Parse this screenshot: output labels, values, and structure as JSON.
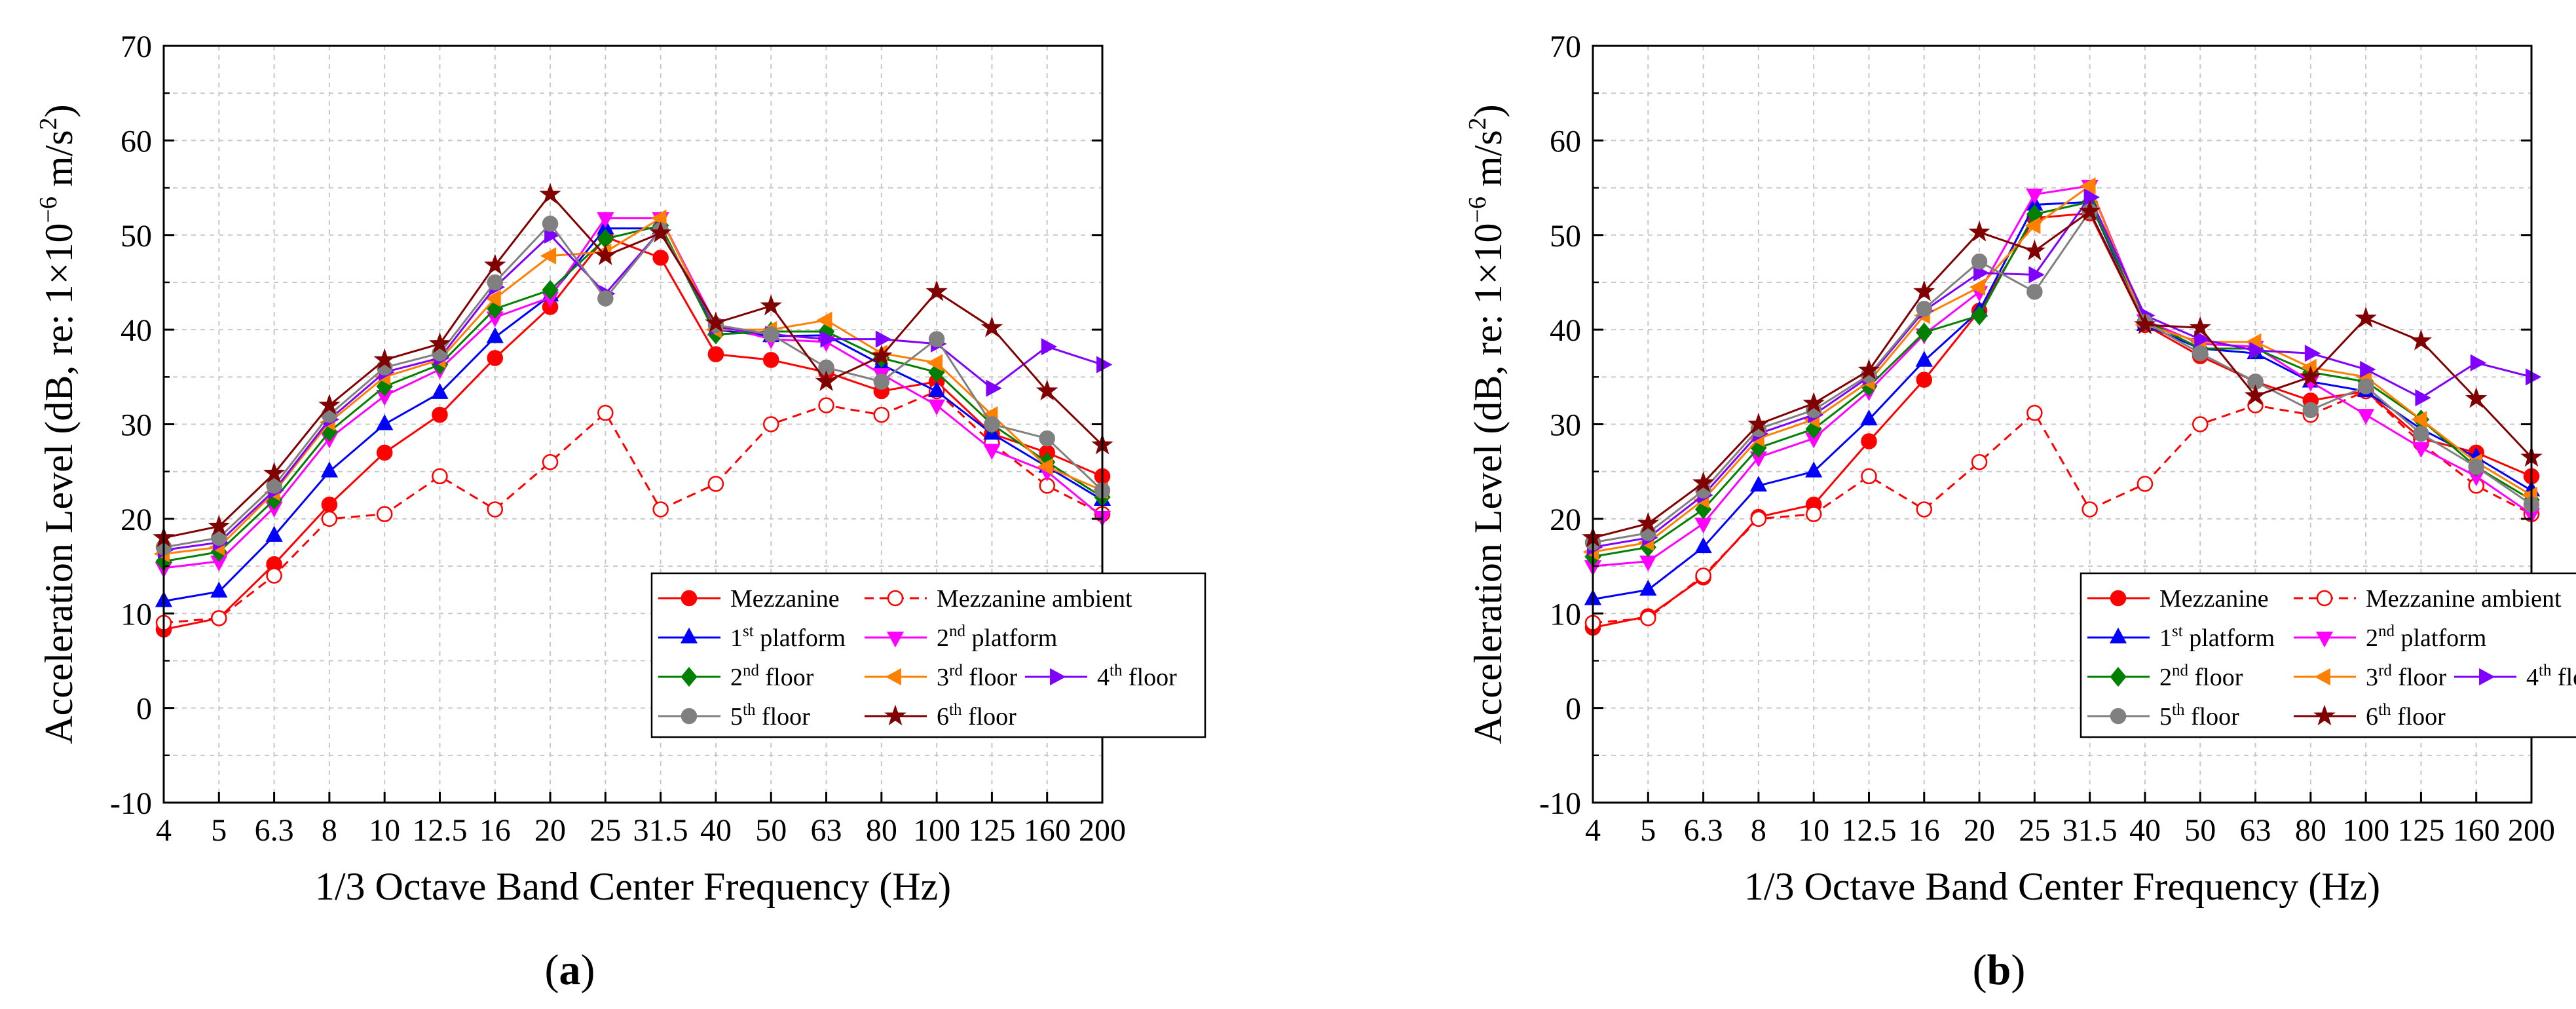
{
  "chart_data": [
    {
      "panel_label": "a",
      "type": "line",
      "xlabel": "1/3 Octave Band Center Frequency (Hz)",
      "ylabel_prefix": "Acceleration Level (dB, re: 1×10",
      "ylabel_exp": "−6",
      "ylabel_mid": " m/s",
      "ylabel_exp2": "2",
      "ylabel_suffix": ")",
      "categories": [
        "4",
        "5",
        "6.3",
        "8",
        "10",
        "12.5",
        "16",
        "20",
        "25",
        "31.5",
        "40",
        "50",
        "63",
        "80",
        "100",
        "125",
        "160",
        "200"
      ],
      "ylim": [
        -10,
        70
      ],
      "yticks": [
        -10,
        0,
        10,
        20,
        30,
        40,
        50,
        60,
        70
      ],
      "grid": true,
      "legend_position": "bottom-right",
      "series": [
        {
          "name": "Mezzanine",
          "sup": "",
          "suffix": "",
          "color": "#ff0000",
          "marker": "circle",
          "fill": true,
          "dashed": false,
          "values": [
            8.3,
            9.5,
            15.2,
            21.5,
            27,
            31,
            37,
            42.4,
            49.8,
            47.6,
            37.4,
            36.8,
            35.5,
            33.5,
            34.5,
            29,
            27,
            24.5
          ]
        },
        {
          "name": "Mezzanine ambient",
          "sup": "",
          "suffix": "",
          "color": "#ff0000",
          "marker": "circle",
          "fill": false,
          "dashed": true,
          "values": [
            9,
            9.5,
            14,
            20,
            20.5,
            24.5,
            21,
            26,
            31.2,
            21,
            23.7,
            30,
            32,
            31,
            33.5,
            28,
            23.5,
            20.5
          ]
        },
        {
          "name": "1",
          "sup": "st",
          "suffix": " platform",
          "color": "#0000ff",
          "marker": "triangle-up",
          "fill": true,
          "dashed": false,
          "values": [
            11.3,
            12.3,
            18.2,
            25,
            30,
            33.3,
            39.2,
            43.6,
            50.7,
            50.7,
            40,
            39.3,
            39.4,
            36.3,
            33.5,
            29,
            25.5,
            22
          ]
        },
        {
          "name": "2",
          "sup": "nd",
          "suffix": " platform",
          "color": "#ff00ff",
          "marker": "triangle-down",
          "fill": true,
          "dashed": false,
          "values": [
            14.8,
            15.5,
            21.2,
            28.5,
            33,
            35.8,
            41.3,
            43.4,
            51.8,
            51.8,
            40.5,
            39,
            38.7,
            35.3,
            32,
            27.3,
            25,
            20.2
          ]
        },
        {
          "name": "2",
          "sup": "nd",
          "suffix": " floor",
          "color": "#008000",
          "marker": "diamond",
          "fill": true,
          "dashed": false,
          "values": [
            15.5,
            16.5,
            22,
            29.2,
            34,
            36.3,
            42.2,
            44.2,
            49.6,
            51,
            39.5,
            39.8,
            39.8,
            37,
            35.5,
            30,
            26,
            22.3
          ]
        },
        {
          "name": "3",
          "sup": "rd",
          "suffix": " floor",
          "color": "#ff8000",
          "marker": "triangle-left",
          "fill": true,
          "dashed": false,
          "values": [
            16.3,
            17,
            22.8,
            30.2,
            35,
            36.8,
            43.3,
            47.8,
            48.2,
            51.8,
            40,
            40,
            41,
            37.5,
            36.5,
            31,
            25.5,
            23
          ]
        },
        {
          "name": "4",
          "sup": "th",
          "suffix": " floor",
          "color": "#8000ff",
          "marker": "triangle-right",
          "fill": true,
          "dashed": false,
          "values": [
            16.7,
            17.5,
            23,
            30.5,
            35.5,
            37,
            44.5,
            50,
            43.8,
            50.5,
            40.3,
            39.5,
            39,
            39,
            38.5,
            33.8,
            38.2,
            36.3
          ]
        },
        {
          "name": "5",
          "sup": "th",
          "suffix": " floor",
          "color": "#808080",
          "marker": "circle",
          "fill": true,
          "dashed": false,
          "values": [
            17,
            18,
            23.5,
            31,
            36,
            37.5,
            45,
            51.2,
            43.3,
            50.5,
            40.5,
            39.5,
            36,
            34.5,
            39,
            30,
            28.5,
            23
          ]
        },
        {
          "name": "6",
          "sup": "th",
          "suffix": " floor",
          "color": "#800000",
          "marker": "star",
          "fill": true,
          "dashed": false,
          "values": [
            18,
            19.2,
            24.8,
            32,
            36.8,
            38.5,
            46.8,
            54.3,
            47.8,
            50.2,
            40.7,
            42.5,
            34.5,
            37.2,
            44,
            40.2,
            33.5,
            27.8
          ]
        }
      ]
    },
    {
      "panel_label": "b",
      "type": "line",
      "xlabel": "1/3 Octave Band Center Frequency (Hz)",
      "ylabel_prefix": "Acceleration Level (dB, re: 1×10",
      "ylabel_exp": "−6",
      "ylabel_mid": " m/s",
      "ylabel_exp2": "2",
      "ylabel_suffix": ")",
      "categories": [
        "4",
        "5",
        "6.3",
        "8",
        "10",
        "12.5",
        "16",
        "20",
        "25",
        "31.5",
        "40",
        "50",
        "63",
        "80",
        "100",
        "125",
        "160",
        "200"
      ],
      "ylim": [
        -10,
        70
      ],
      "yticks": [
        -10,
        0,
        10,
        20,
        30,
        40,
        50,
        60,
        70
      ],
      "grid": true,
      "legend_position": "bottom-right",
      "series": [
        {
          "name": "Mezzanine",
          "sup": "",
          "suffix": "",
          "color": "#ff0000",
          "marker": "circle",
          "fill": true,
          "dashed": false,
          "values": [
            8.5,
            9.7,
            13.8,
            20.2,
            21.5,
            28.2,
            34.7,
            42,
            51.8,
            52.3,
            40.5,
            37.2,
            34.5,
            32.5,
            33.5,
            28.5,
            27,
            24.5
          ]
        },
        {
          "name": "Mezzanine ambient",
          "sup": "",
          "suffix": "",
          "color": "#ff0000",
          "marker": "circle",
          "fill": false,
          "dashed": true,
          "values": [
            9,
            9.5,
            14,
            20,
            20.5,
            24.5,
            21,
            26,
            31.2,
            21,
            23.7,
            30,
            32,
            31,
            33.5,
            28,
            23.5,
            20.5
          ]
        },
        {
          "name": "1",
          "sup": "st",
          "suffix": " platform",
          "color": "#0000ff",
          "marker": "triangle-up",
          "fill": true,
          "dashed": false,
          "values": [
            11.5,
            12.5,
            17,
            23.5,
            25,
            30.5,
            36.7,
            42,
            53.2,
            53.5,
            40.5,
            38,
            37.5,
            34.5,
            33.5,
            29.5,
            26.5,
            23
          ]
        },
        {
          "name": "2",
          "sup": "nd",
          "suffix": " platform",
          "color": "#ff00ff",
          "marker": "triangle-down",
          "fill": true,
          "dashed": false,
          "values": [
            15,
            15.5,
            19.5,
            26.5,
            28.5,
            33.5,
            39.5,
            44,
            54.3,
            55.2,
            41,
            38.5,
            38.2,
            34.5,
            31,
            27.5,
            24.5,
            20.5
          ]
        },
        {
          "name": "2",
          "sup": "nd",
          "suffix": " floor",
          "color": "#008000",
          "marker": "diamond",
          "fill": true,
          "dashed": false,
          "values": [
            16,
            17,
            21,
            27.5,
            29.5,
            34,
            39.7,
            41.5,
            52.2,
            53.5,
            41,
            38,
            38,
            35.5,
            34.5,
            30.5,
            25.5,
            22
          ]
        },
        {
          "name": "3",
          "sup": "rd",
          "suffix": " floor",
          "color": "#ff8000",
          "marker": "triangle-left",
          "fill": true,
          "dashed": false,
          "values": [
            16.5,
            17.5,
            22,
            28.5,
            30.5,
            34.5,
            41.5,
            44.5,
            51,
            55.2,
            40.5,
            38.7,
            38.7,
            36,
            35,
            30.5,
            26,
            22.5
          ]
        },
        {
          "name": "4",
          "sup": "th",
          "suffix": " floor",
          "color": "#8000ff",
          "marker": "triangle-right",
          "fill": true,
          "dashed": false,
          "values": [
            17,
            18,
            22.5,
            29,
            31,
            35,
            42,
            46,
            45.8,
            54,
            41.5,
            39,
            37.8,
            37.5,
            35.8,
            32.8,
            36.5,
            35
          ]
        },
        {
          "name": "5",
          "sup": "th",
          "suffix": " floor",
          "color": "#808080",
          "marker": "circle",
          "fill": true,
          "dashed": false,
          "values": [
            17.5,
            18.5,
            23,
            29.5,
            31.5,
            35.2,
            42.2,
            47.2,
            44,
            52.5,
            40.8,
            37.5,
            34.5,
            31.5,
            34,
            29,
            25.5,
            21.5
          ]
        },
        {
          "name": "6",
          "sup": "th",
          "suffix": " floor",
          "color": "#800000",
          "marker": "star",
          "fill": true,
          "dashed": false,
          "values": [
            18,
            19.5,
            23.8,
            30,
            32.2,
            35.7,
            44,
            50.3,
            48.3,
            52.5,
            40.5,
            40.2,
            33,
            35,
            41.2,
            38.8,
            32.7,
            26.5
          ]
        }
      ]
    }
  ]
}
